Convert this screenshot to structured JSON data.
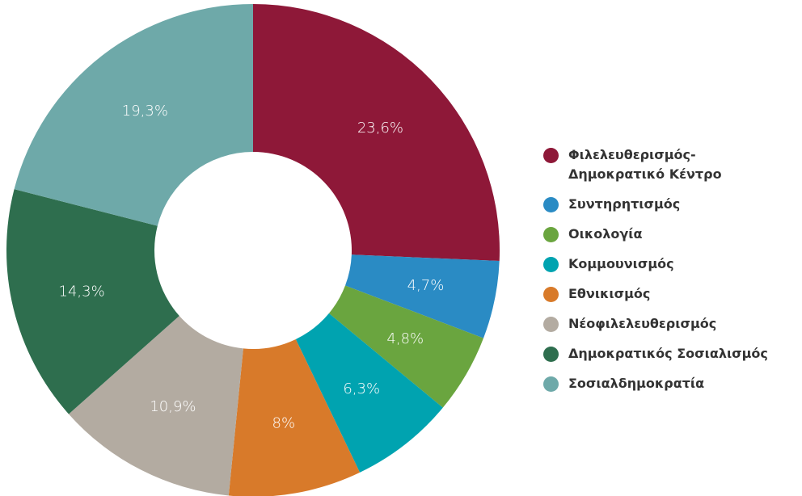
{
  "chart_data": {
    "type": "donut",
    "categories": [
      "Φιλελευθερισμός-Δημοκρατικό Κέντρο",
      "Συντηρητισμός",
      "Οικολογία",
      "Κομμουνισμός",
      "Εθνικισμός",
      "Νέοφιλελευθερισμός",
      "Δημοκρατικός Σοσιαλισμός",
      "Σοσιαλδημοκρατία"
    ],
    "values": [
      23.6,
      4.7,
      4.8,
      6.3,
      8,
      10.9,
      14.3,
      19.3
    ],
    "value_labels": [
      "23,6%",
      "4,7%",
      "4,8%",
      "6,3%",
      "8%",
      "10,9%",
      "14,3%",
      "19,3%"
    ],
    "colors": [
      "#8e1838",
      "#2a8bc4",
      "#6aa53f",
      "#00a3b0",
      "#d87a2a",
      "#b3aba1",
      "#2e6e4e",
      "#6ea9a9"
    ],
    "legend": "right"
  }
}
